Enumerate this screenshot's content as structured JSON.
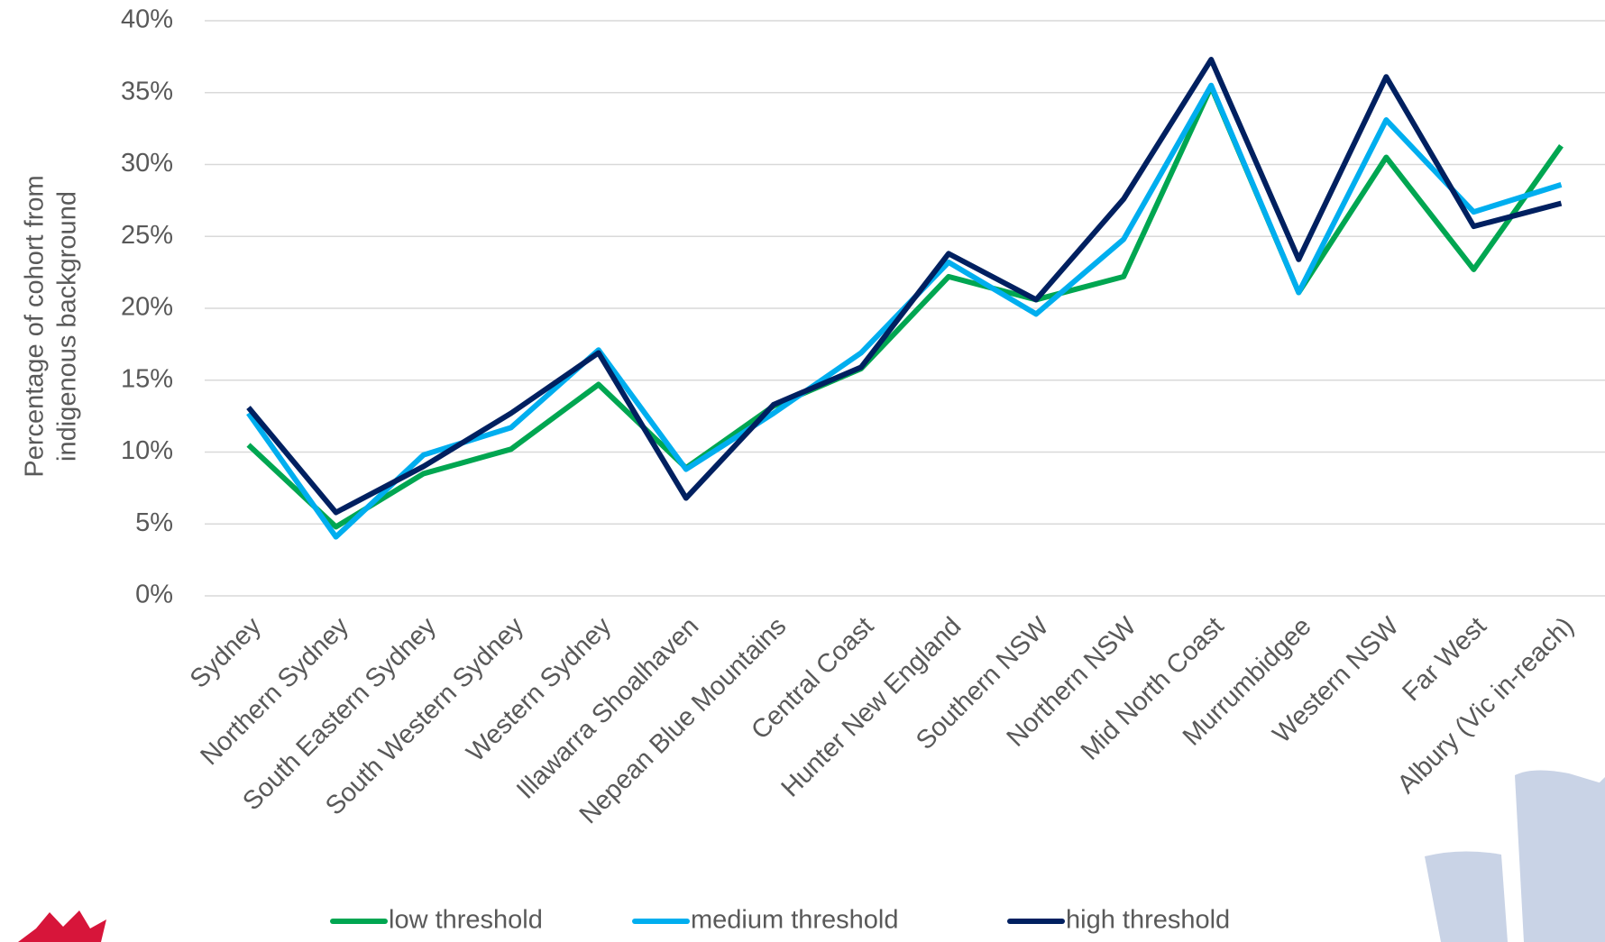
{
  "chart_data": {
    "type": "line",
    "y_label": [
      "Percentage of cohort from",
      "indigenous background"
    ],
    "categories": [
      "Sydney",
      "Northern Sydney",
      "South Eastern Sydney",
      "South Western Sydney",
      "Western Sydney",
      "Illawarra Shoalhaven",
      "Nepean Blue Mountains",
      "Central Coast",
      "Hunter New England",
      "Southern NSW",
      "Northern NSW",
      "Mid North Coast",
      "Murrumbidgee",
      "Western NSW",
      "Far West",
      "Albury (Vic in-reach)"
    ],
    "series": [
      {
        "name": "low threshold",
        "color": "#00a651",
        "values": [
          10.5,
          4.8,
          8.5,
          10.2,
          14.7,
          8.9,
          13.2,
          15.8,
          22.2,
          20.6,
          22.2,
          35.4,
          21.1,
          30.5,
          22.7,
          31.3
        ]
      },
      {
        "name": "medium threshold",
        "color": "#00aeef",
        "values": [
          12.7,
          4.1,
          9.8,
          11.7,
          17.1,
          8.8,
          12.7,
          16.9,
          23.2,
          19.6,
          24.8,
          35.5,
          21.1,
          33.1,
          26.7,
          28.6
        ]
      },
      {
        "name": "high threshold",
        "color": "#002060",
        "values": [
          13.1,
          5.8,
          9.0,
          12.7,
          16.9,
          6.8,
          13.3,
          15.9,
          23.8,
          20.6,
          27.6,
          37.3,
          23.4,
          36.1,
          25.7,
          27.3
        ]
      }
    ],
    "ylim": [
      0,
      40
    ],
    "yticks": [
      {
        "value": 0,
        "label": "0%"
      },
      {
        "value": 5,
        "label": "5%"
      },
      {
        "value": 10,
        "label": "10%"
      },
      {
        "value": 15,
        "label": "15%"
      },
      {
        "value": 20,
        "label": "20%"
      },
      {
        "value": 25,
        "label": "25%"
      },
      {
        "value": 30,
        "label": "30%"
      },
      {
        "value": 35,
        "label": "35%"
      },
      {
        "value": 40,
        "label": "40%"
      }
    ],
    "grid": true,
    "legend": "bottom"
  }
}
